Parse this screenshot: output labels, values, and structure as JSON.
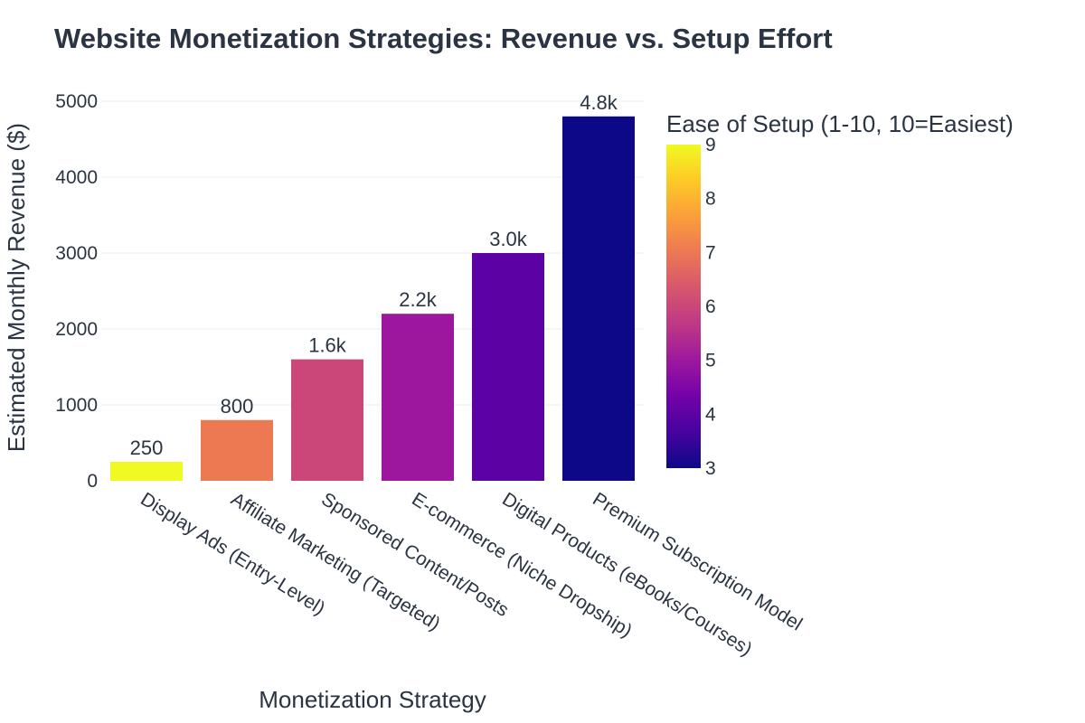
{
  "chart_data": {
    "type": "bar",
    "title": "Website Monetization Strategies: Revenue vs. Setup Effort",
    "xlabel": "Monetization Strategy",
    "ylabel": "Estimated Monthly Revenue ($)",
    "categories": [
      "Display Ads (Entry-Level)",
      "Affiliate Marketing (Targeted)",
      "Sponsored Content/Posts",
      "E-commerce (Niche Dropship)",
      "Digital Products (eBooks/Courses)",
      "Premium Subscription Model"
    ],
    "values": [
      250,
      800,
      1600,
      2200,
      3000,
      4800
    ],
    "value_labels": [
      "250",
      "800",
      "1.6k",
      "2.2k",
      "3.0k",
      "4.8k"
    ],
    "ease_of_setup": [
      9,
      7,
      6,
      5,
      4,
      3
    ],
    "ylim": [
      0,
      5000
    ],
    "yticks": [
      0,
      1000,
      2000,
      3000,
      4000,
      5000
    ],
    "grid": true,
    "colorbar": {
      "title": "Ease of Setup (1-10, 10=Easiest)",
      "range": [
        3,
        9
      ],
      "ticks": [
        3,
        4,
        5,
        6,
        7,
        8,
        9
      ],
      "colorscale": "plasma"
    }
  }
}
